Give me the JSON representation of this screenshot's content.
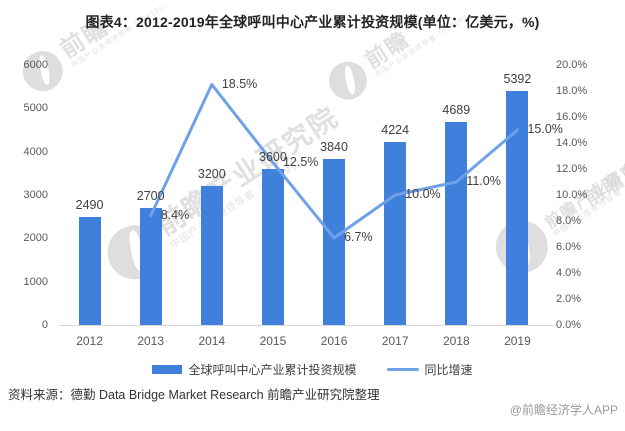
{
  "title": "图表4：2012-2019年全球呼叫中心产业累计投资规模(单位：亿美元，%)",
  "chart_data": {
    "type": "bar",
    "subtype": "bar+line combo, dual axis",
    "categories": [
      "2012",
      "2013",
      "2014",
      "2015",
      "2016",
      "2017",
      "2018",
      "2019"
    ],
    "series": [
      {
        "name": "全球呼叫中心产业累计投资规模",
        "type": "bar",
        "axis": "left",
        "color": "#3F80DC",
        "values": [
          2490,
          2700,
          3200,
          3600,
          3840,
          4224,
          4689,
          5392
        ]
      },
      {
        "name": "同比增速",
        "type": "line",
        "axis": "right",
        "color": "#6FA1E8",
        "values": [
          null,
          8.4,
          18.5,
          12.5,
          6.7,
          10.0,
          11.0,
          15.0
        ],
        "labels": [
          "",
          "8.4%",
          "18.5%",
          "12.5%",
          "6.7%",
          "10.0%",
          "11.0%",
          "15.0%"
        ]
      }
    ],
    "left_axis": {
      "min": 0,
      "max": 6000,
      "step": 1000,
      "ticks": [
        "0",
        "1000",
        "2000",
        "3000",
        "4000",
        "5000",
        "6000"
      ]
    },
    "right_axis": {
      "min": 0,
      "max": 20,
      "step": 2,
      "ticks": [
        "0.0%",
        "2.0%",
        "4.0%",
        "6.0%",
        "8.0%",
        "10.0%",
        "12.0%",
        "14.0%",
        "16.0%",
        "18.0%",
        "20.0%"
      ]
    },
    "grid": false,
    "legend_position": "bottom"
  },
  "source_note": "资料来源：德勤 Data Bridge Market Research 前瞻产业研究院整理",
  "credit": "@前瞻经济学人APP",
  "watermark": {
    "brand": "前瞻",
    "full": "前瞻产业研究院",
    "partial": "前瞻产业",
    "sub": "中国产业咨询领导者（839599）"
  }
}
